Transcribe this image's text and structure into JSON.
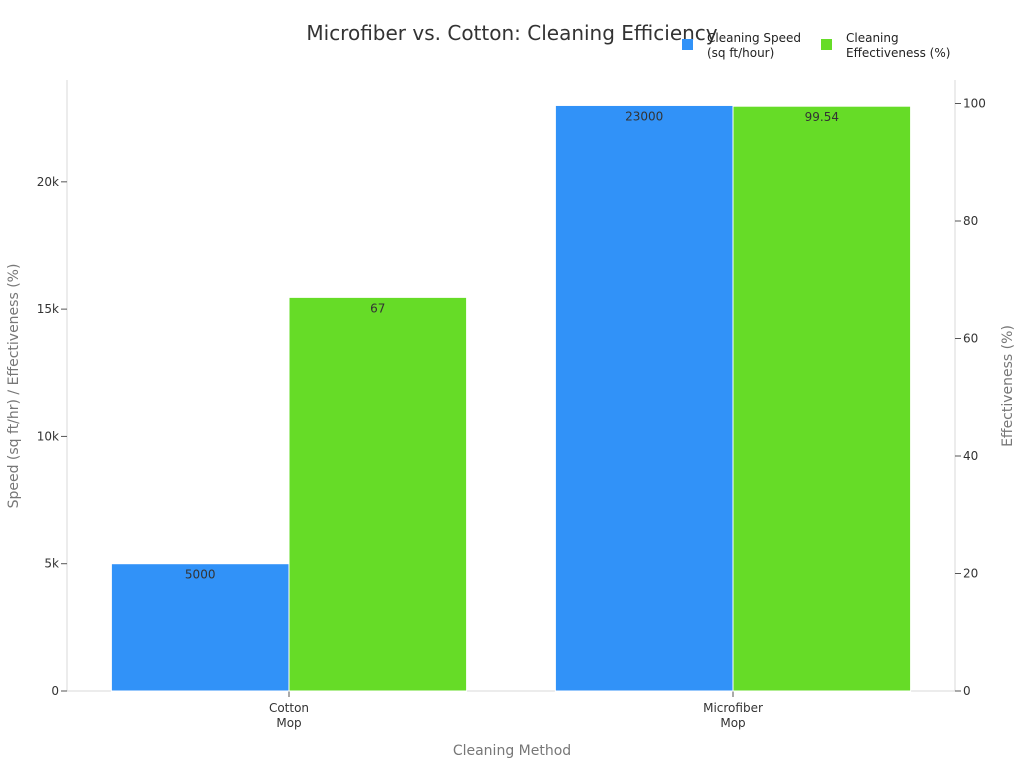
{
  "chart_data": {
    "type": "bar",
    "title": "Microfiber vs. Cotton: Cleaning Efficiency",
    "xlabel": "Cleaning Method",
    "ylabel": "Speed (sq ft/hr) / Effectiveness (%)",
    "y2label": "Effectiveness (%)",
    "categories": [
      [
        "Cotton",
        "Mop"
      ],
      [
        "Microfiber",
        "Mop"
      ]
    ],
    "series": [
      {
        "name": [
          "Cleaning Speed",
          "(sq ft/hour)"
        ],
        "axis": "left",
        "color": "#3192f8",
        "values": [
          5000,
          23000
        ],
        "labels": [
          "5000",
          "23000"
        ]
      },
      {
        "name": [
          "Cleaning",
          "Effectiveness (%)"
        ],
        "axis": "right",
        "color": "#66dc27",
        "values": [
          67,
          99.54
        ],
        "labels": [
          "67",
          "99.54"
        ]
      }
    ],
    "ylim": [
      0,
      24000
    ],
    "y2lim": [
      0,
      104
    ],
    "y_ticks": [
      {
        "value": 0,
        "label": "0"
      },
      {
        "value": 5000,
        "label": "5k"
      },
      {
        "value": 10000,
        "label": "10k"
      },
      {
        "value": 15000,
        "label": "15k"
      },
      {
        "value": 20000,
        "label": "20k"
      }
    ],
    "y2_ticks": [
      {
        "value": 0,
        "label": "0"
      },
      {
        "value": 20,
        "label": "20"
      },
      {
        "value": 40,
        "label": "40"
      },
      {
        "value": 60,
        "label": "60"
      },
      {
        "value": 80,
        "label": "80"
      },
      {
        "value": 100,
        "label": "100"
      }
    ],
    "legend_position": "top-right",
    "grid": false
  }
}
